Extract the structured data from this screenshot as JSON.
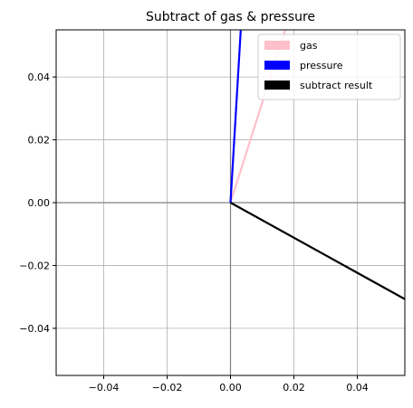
{
  "chart_data": {
    "type": "line",
    "title": "Subtract of gas & pressure",
    "xlabel": "",
    "ylabel": "",
    "xlim": [
      -0.055,
      0.055
    ],
    "ylim": [
      -0.055,
      0.055
    ],
    "xticks": [
      -0.04,
      -0.02,
      0.0,
      0.02,
      0.04
    ],
    "xtick_labels": [
      "−0.04",
      "−0.02",
      "0.00",
      "0.02",
      "0.04"
    ],
    "yticks": [
      -0.04,
      -0.02,
      0.0,
      0.02,
      0.04
    ],
    "ytick_labels": [
      "−0.04",
      "−0.02",
      "0.00",
      "0.02",
      "0.04"
    ],
    "grid": true,
    "legend_position": "top-right",
    "series": [
      {
        "name": "gas",
        "color": "#ffc0cb",
        "x": [
          0,
          0.0175
        ],
        "y": [
          0,
          0.0557
        ]
      },
      {
        "name": "pressure",
        "color": "#0000ff",
        "x": [
          0,
          0.0033
        ],
        "y": [
          0,
          0.056
        ]
      },
      {
        "name": "subtract result",
        "color": "#000000",
        "x": [
          0,
          0.055
        ],
        "y": [
          0,
          -0.0307
        ]
      }
    ]
  }
}
